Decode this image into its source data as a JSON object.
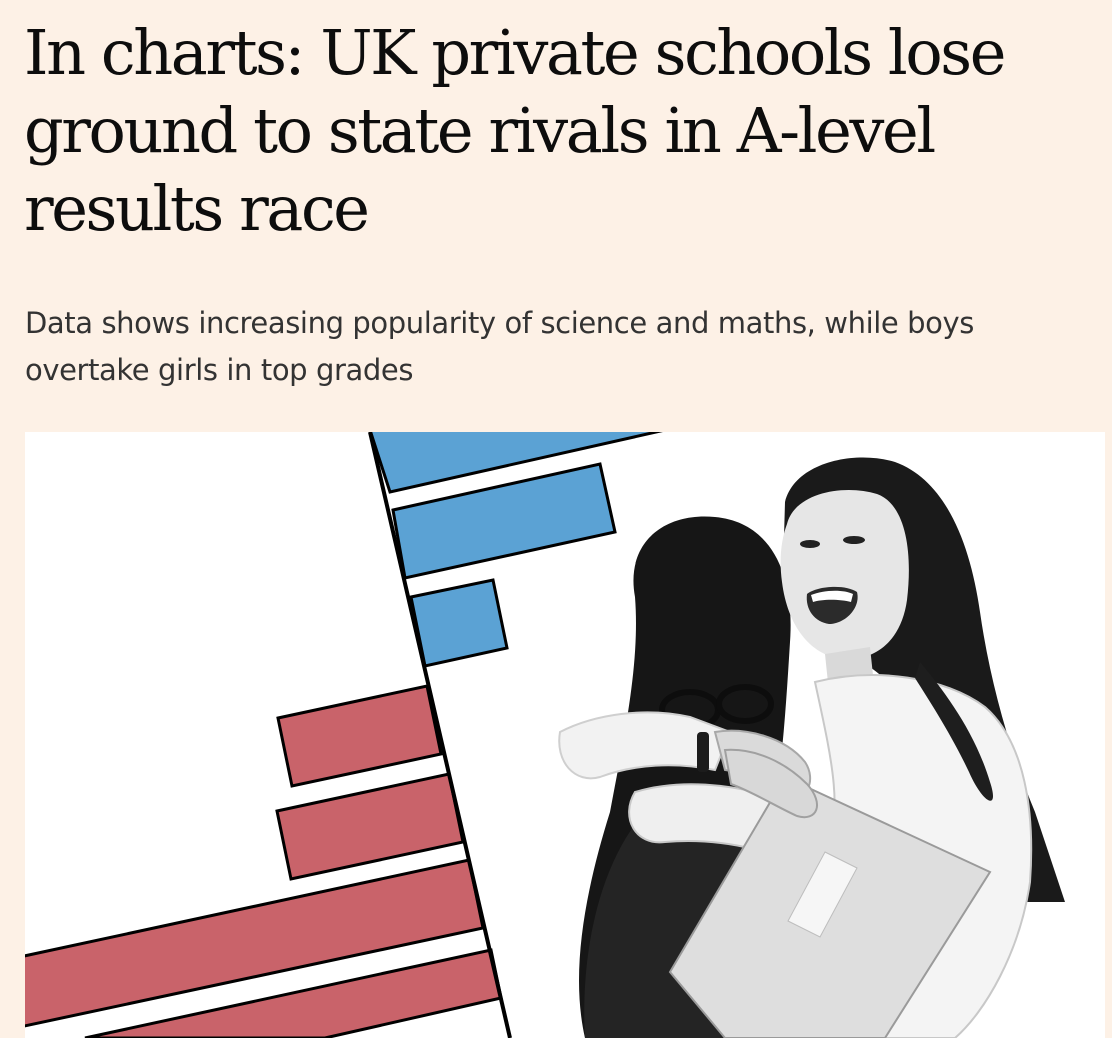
{
  "article": {
    "headline": "In charts: UK private schools lose ground to state rivals in A-level results race",
    "standfirst": "Data shows increasing popularity of science and maths, while boys overtake girls in top grades"
  },
  "hero_image": {
    "colors": {
      "blue_bars": "#5ba2d4",
      "red_bars": "#c9636a",
      "axis_line": "#000000",
      "background": "#ffffff"
    }
  }
}
